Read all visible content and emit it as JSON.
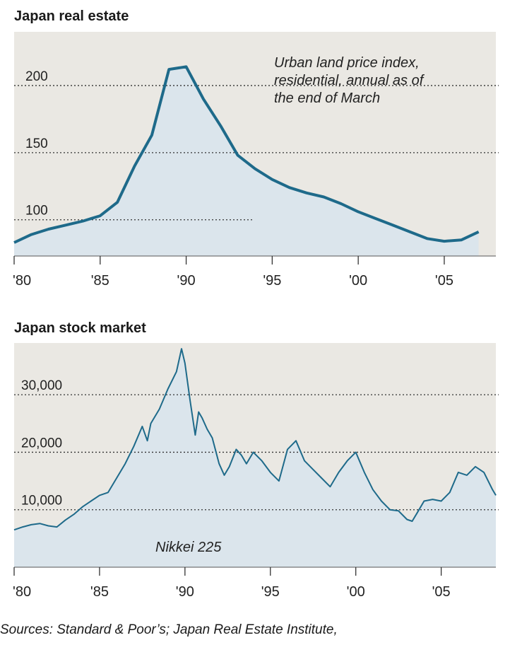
{
  "chart_data": [
    {
      "type": "area",
      "title": "Japan real estate",
      "annotation": [
        "Urban land price index,",
        "residential, annual as of",
        "the end of March"
      ],
      "x_ticks": [
        "'80",
        "'85",
        "'90",
        "'95",
        "'00",
        "'05"
      ],
      "y_ticks": [
        "100",
        "150",
        "200"
      ],
      "xlim": [
        1980,
        2008
      ],
      "ylim": [
        73,
        240
      ],
      "grid": "dotted horizontal",
      "series": [
        {
          "x": [
            1980,
            1981,
            1982,
            1983,
            1984,
            1985,
            1986,
            1987,
            1988,
            1989,
            1990,
            1991,
            1992,
            1993,
            1994,
            1995,
            1996,
            1997,
            1998,
            1999,
            2000,
            2001,
            2002,
            2003,
            2004,
            2005,
            2006,
            2007
          ],
          "values": [
            83,
            89,
            93,
            96,
            99,
            103,
            113,
            140,
            163,
            212,
            214,
            190,
            170,
            148,
            138,
            130,
            124,
            120,
            117,
            112,
            106,
            101,
            96,
            91,
            86,
            84,
            85,
            91
          ]
        }
      ],
      "colors": {
        "line": "#1e6a8a",
        "fill": "#dbe5ec",
        "background": "#eae8e3"
      }
    },
    {
      "type": "area",
      "title": "Japan stock market",
      "annotation": [
        "Nikkei 225"
      ],
      "x_ticks": [
        "'80",
        "'85",
        "'90",
        "'95",
        "'00",
        "'05"
      ],
      "y_ticks": [
        "10,000",
        "20,000",
        "30,000"
      ],
      "xlim": [
        1980,
        2008.2
      ],
      "ylim": [
        0,
        39000
      ],
      "grid": "dotted horizontal",
      "series": [
        {
          "x": [
            1980.0,
            1980.5,
            1981.0,
            1981.5,
            1982.0,
            1982.5,
            1983.0,
            1983.5,
            1984.0,
            1984.5,
            1985.0,
            1985.5,
            1986.0,
            1986.5,
            1987.0,
            1987.5,
            1987.8,
            1988.0,
            1988.5,
            1989.0,
            1989.5,
            1989.8,
            1990.0,
            1990.3,
            1990.6,
            1990.8,
            1991.0,
            1991.3,
            1991.6,
            1992.0,
            1992.3,
            1992.6,
            1993.0,
            1993.3,
            1993.6,
            1994.0,
            1994.5,
            1995.0,
            1995.5,
            1996.0,
            1996.5,
            1997.0,
            1997.5,
            1998.0,
            1998.5,
            1999.0,
            1999.5,
            2000.0,
            2000.5,
            2001.0,
            2001.5,
            2002.0,
            2002.5,
            2003.0,
            2003.3,
            2003.6,
            2004.0,
            2004.5,
            2005.0,
            2005.5,
            2006.0,
            2006.5,
            2007.0,
            2007.5,
            2008.0,
            2008.2
          ],
          "values": [
            6500,
            7000,
            7400,
            7600,
            7200,
            7000,
            8200,
            9200,
            10500,
            11500,
            12500,
            13000,
            15500,
            18000,
            21000,
            24500,
            22000,
            25000,
            27500,
            31000,
            34000,
            38000,
            35500,
            29000,
            23000,
            27000,
            26000,
            24000,
            22500,
            18000,
            16000,
            17500,
            20500,
            19500,
            18000,
            20000,
            18500,
            16500,
            15000,
            20500,
            22000,
            18500,
            17000,
            15500,
            14000,
            16500,
            18500,
            20000,
            16500,
            13500,
            11500,
            10000,
            9800,
            8300,
            8000,
            9500,
            11500,
            11800,
            11500,
            13000,
            16500,
            16000,
            17500,
            16500,
            13500,
            12500
          ]
        }
      ],
      "colors": {
        "line": "#1e6a8a",
        "fill": "#dbe5ec",
        "background": "#eae8e3"
      }
    }
  ],
  "footer": {
    "source": "Sources: Standard & Poor’s; Japan Real Estate Institute,"
  }
}
